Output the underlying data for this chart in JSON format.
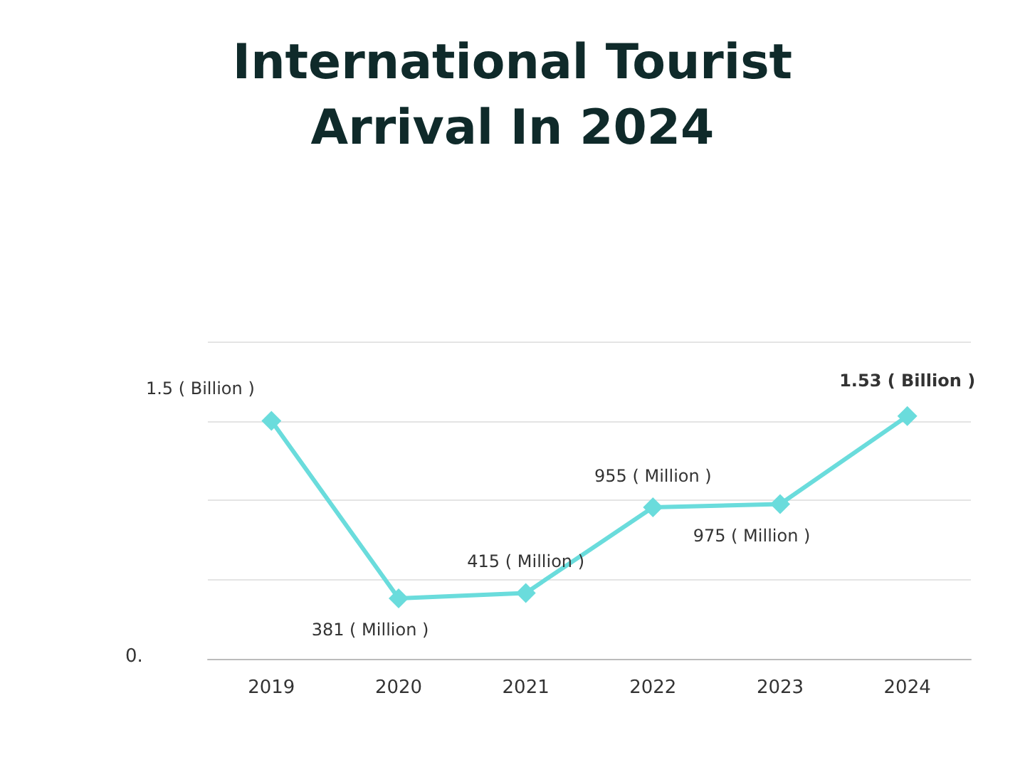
{
  "chart_data": {
    "type": "line",
    "title": "International Tourist\nArrival In 2024",
    "categories": [
      "2019",
      "2020",
      "2021",
      "2022",
      "2023",
      "2024"
    ],
    "series": [
      {
        "color": "#6adcdc",
        "values": [
          1500,
          381,
          415,
          955,
          975,
          1530
        ],
        "value_labels": [
          null,
          "381 ( Million )",
          "415 ( Million )",
          "955 ( Million )",
          "975 ( Million )",
          null
        ]
      }
    ],
    "ylim": [
      0,
      2000
    ],
    "yticks": [
      {
        "value": 0,
        "label": null
      },
      {
        "value": 500,
        "label": null
      },
      {
        "value": 1000,
        "label": null
      },
      {
        "value": 1500,
        "label": null
      },
      {
        "value": 2000,
        "label": null
      }
    ],
    "annotations": [
      "0.",
      {
        "text": "1.5 ( Billion )",
        "x": "2019",
        "y": 1500
      },
      {
        "text": "1.53 ( Billion )",
        "x": "2024",
        "y": 1530
      }
    ],
    "grid": "y",
    "marker": "diamond",
    "line_style": "solid"
  }
}
